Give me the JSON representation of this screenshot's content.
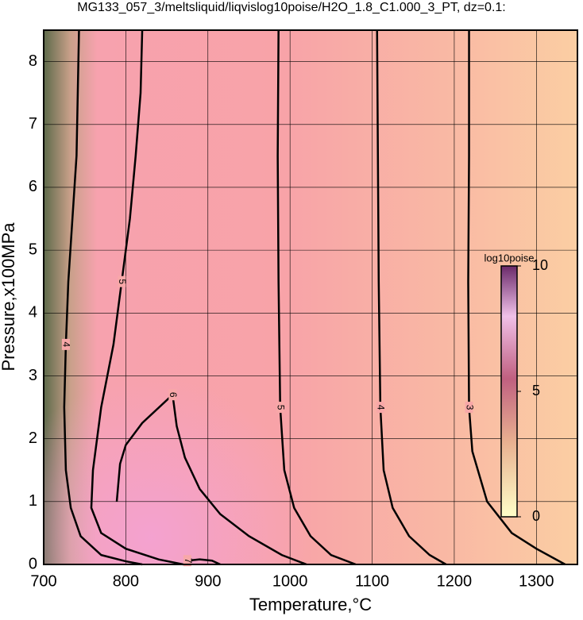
{
  "chart_data": {
    "type": "contour",
    "title": "MG133_057_3/meltsliquid/liqvislog10poise/H2O_1.8_C1.000_3_PT, dz=0.1:",
    "x_label": "Temperature,°C",
    "y_label": "Pressure,x100MPa",
    "xlim": [
      700,
      1350
    ],
    "ylim": [
      0,
      8.5
    ],
    "xticks": [
      700,
      800,
      900,
      1000,
      1100,
      1200,
      1300
    ],
    "yticks": [
      0,
      1,
      2,
      3,
      4,
      5,
      6,
      7,
      8
    ],
    "grid": true,
    "contours": [
      {
        "level": 3,
        "x": [
          1218,
          1218,
          1217,
          1218,
          1222,
          1240,
          1270,
          1300,
          1335
        ],
        "y": [
          8.5,
          6.5,
          4.5,
          2.5,
          1.8,
          1.0,
          0.5,
          0.25,
          0
        ]
      },
      {
        "level": 4,
        "x": [
          1106,
          1107,
          1108,
          1110,
          1114,
          1125,
          1145,
          1170,
          1190
        ],
        "y": [
          8.5,
          6.5,
          4.5,
          2.5,
          1.5,
          0.9,
          0.45,
          0.15,
          0
        ]
      },
      {
        "level": 5,
        "x": [
          986,
          985,
          986,
          988,
          993,
          1005,
          1025,
          1050,
          1080
        ],
        "y": [
          8.5,
          6.5,
          4.5,
          2.5,
          1.5,
          0.9,
          0.45,
          0.15,
          0
        ]
      },
      {
        "level": 5,
        "x": [
          820,
          818,
          812,
          805,
          795,
          785,
          770,
          760,
          758,
          770,
          800,
          840,
          870
        ],
        "y": [
          8.5,
          7.5,
          6.5,
          5.5,
          4.5,
          3.5,
          2.5,
          1.5,
          0.9,
          0.5,
          0.25,
          0.08,
          0
        ]
      },
      {
        "level": 6,
        "x": [
          789,
          793,
          800,
          820,
          857,
          862,
          872,
          890,
          915,
          950,
          990,
          1020
        ],
        "y": [
          1.0,
          1.6,
          1.9,
          2.25,
          2.7,
          2.2,
          1.7,
          1.2,
          0.8,
          0.45,
          0.15,
          0
        ]
      },
      {
        "level": 4,
        "x": [
          743,
          740,
          735,
          730,
          727,
          725,
          727,
          733,
          745,
          770,
          800,
          820
        ],
        "y": [
          8.5,
          6.5,
          5.5,
          4.5,
          3.5,
          2.5,
          1.5,
          0.9,
          0.45,
          0.15,
          0.05,
          0
        ]
      },
      {
        "level": 7,
        "x": [
          872,
          875,
          890,
          905,
          915
        ],
        "y": [
          0,
          0.06,
          0.08,
          0.06,
          0
        ]
      }
    ],
    "colorbar": {
      "label": "log10poise",
      "clim": [
        0,
        10
      ],
      "ticks": [
        0,
        5,
        10
      ]
    }
  }
}
